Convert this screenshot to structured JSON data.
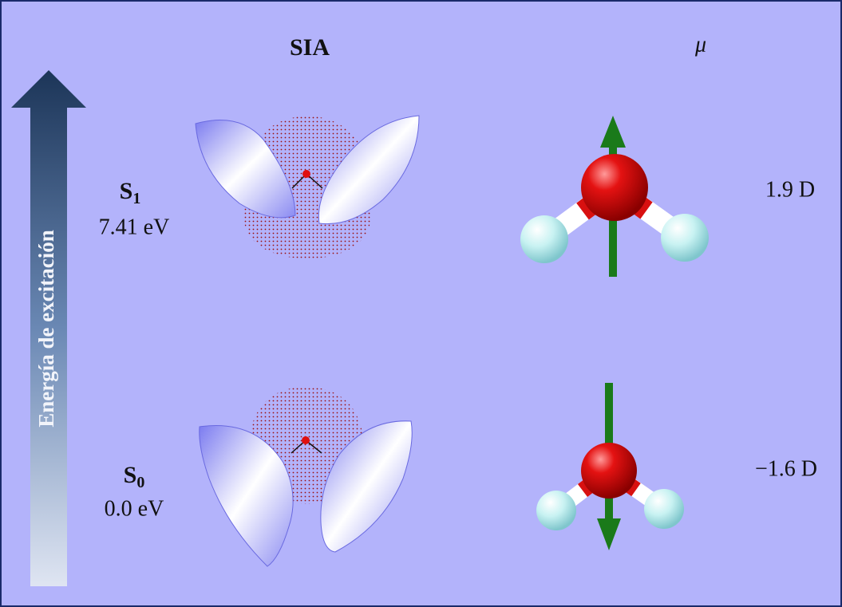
{
  "header": {
    "sia": "SIA",
    "mu": "μ"
  },
  "axis_label": "Energía de excitación",
  "states": [
    {
      "label": "S",
      "subscript": "1",
      "energy": "7.41 eV",
      "dipole": "1.9 D"
    },
    {
      "label": "S",
      "subscript": "0",
      "energy": "0.0 eV",
      "dipole": "−1.6 D"
    }
  ]
}
